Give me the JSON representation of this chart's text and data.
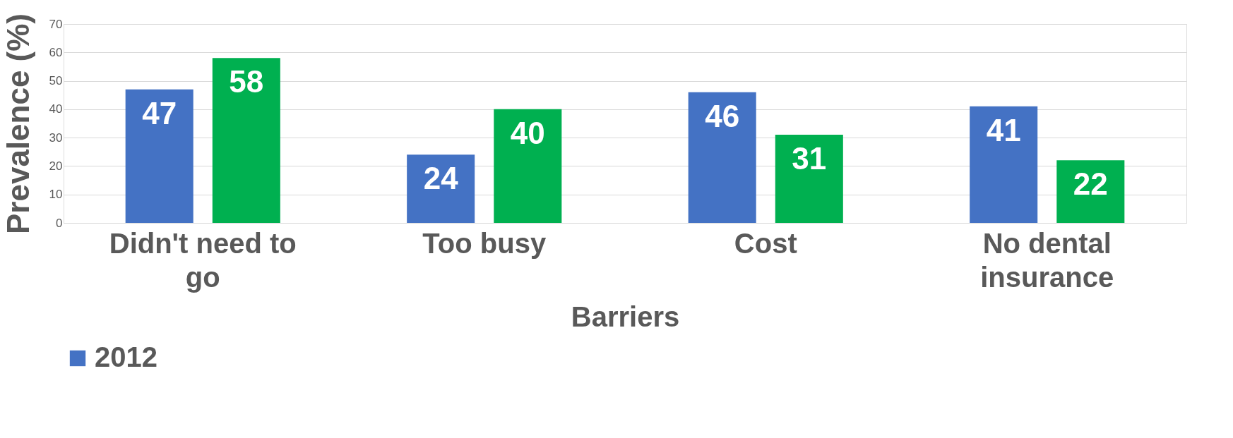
{
  "chart_data": {
    "type": "bar",
    "xlabel": "Barriers",
    "ylabel": "Prevalence (%)",
    "categories": [
      "Didn't need to go",
      "Too busy",
      "Cost",
      "No dental insurance"
    ],
    "series": [
      {
        "name": "2012",
        "color": "#4472c4",
        "values": [
          47,
          24,
          46,
          41
        ]
      },
      {
        "color": "#00b050",
        "values": [
          58,
          40,
          31,
          22
        ]
      }
    ],
    "ylim": [
      0,
      70
    ],
    "yticks": [
      0,
      10,
      20,
      30,
      40,
      50,
      60,
      70
    ],
    "grid": "y",
    "legend": "bottom",
    "data_labels": true
  }
}
